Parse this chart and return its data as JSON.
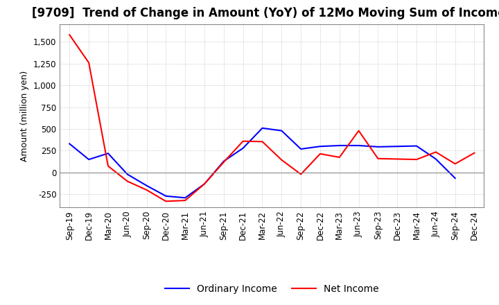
{
  "title": "[9709]  Trend of Change in Amount (YoY) of 12Mo Moving Sum of Incomes",
  "xlabel": "",
  "ylabel": "Amount (million yen)",
  "ylim": [
    -400,
    1700
  ],
  "yticks": [
    -250,
    0,
    250,
    500,
    750,
    1000,
    1250,
    1500
  ],
  "x_labels": [
    "Sep-19",
    "Dec-19",
    "Mar-20",
    "Jun-20",
    "Sep-20",
    "Dec-20",
    "Mar-21",
    "Jun-21",
    "Sep-21",
    "Dec-21",
    "Mar-22",
    "Jun-22",
    "Sep-22",
    "Dec-22",
    "Mar-23",
    "Jun-23",
    "Sep-23",
    "Dec-23",
    "Mar-24",
    "Jun-24",
    "Sep-24",
    "Dec-24"
  ],
  "ordinary_income": [
    330,
    150,
    220,
    -20,
    -150,
    -270,
    -290,
    -130,
    130,
    280,
    510,
    480,
    270,
    300,
    310,
    310,
    295,
    300,
    305,
    155,
    -65,
    null
  ],
  "net_income": [
    1580,
    1260,
    75,
    -100,
    -200,
    -330,
    -320,
    -130,
    120,
    360,
    355,
    145,
    -20,
    215,
    175,
    480,
    160,
    155,
    150,
    235,
    100,
    225
  ],
  "ordinary_color": "#0000ff",
  "net_color": "#ff0000",
  "background_color": "#ffffff",
  "grid_color": "#aaaaaa",
  "title_fontsize": 12,
  "axis_fontsize": 9,
  "tick_fontsize": 8.5,
  "legend_fontsize": 10
}
